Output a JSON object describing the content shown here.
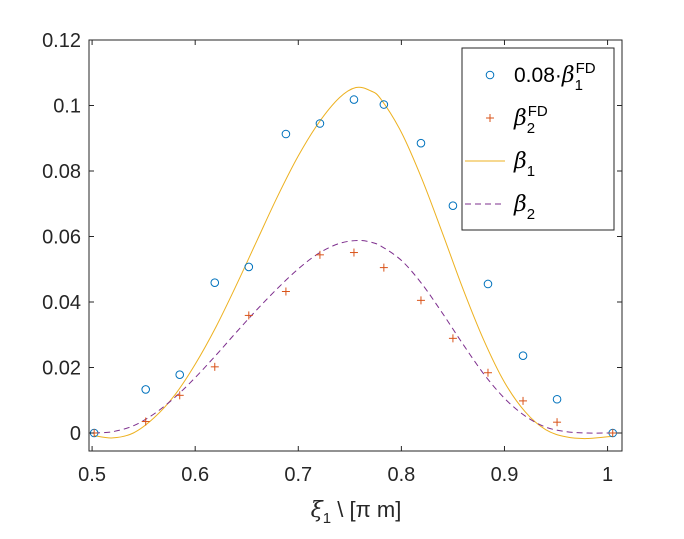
{
  "chart_data": {
    "type": "scatter",
    "title": "",
    "xlabel": {
      "sym": "ξ",
      "sub": "1",
      "rest": " \\ [π m]"
    },
    "ylabel": "",
    "xlim": [
      0.497,
      1.014
    ],
    "ylim": [
      -0.0055,
      0.12
    ],
    "xticks": [
      0.5,
      0.6,
      0.7,
      0.8,
      0.9,
      1.0
    ],
    "xtick_labels": [
      "0.5",
      "0.6",
      "0.7",
      "0.8",
      "0.9",
      "1"
    ],
    "yticks": [
      0,
      0.02,
      0.04,
      0.06,
      0.08,
      0.1,
      0.12
    ],
    "ytick_labels": [
      "0",
      "0.02",
      "0.04",
      "0.06",
      "0.08",
      "0.1",
      "0.12"
    ],
    "grid": false,
    "legend_position": "top-right",
    "series": [
      {
        "name": "0.08·β1FD",
        "legend": {
          "prefix": "0.08·",
          "sym": "β",
          "sub": "1",
          "sup": "FD"
        },
        "kind": "markers-circle",
        "color": "#0072BD",
        "x": [
          0.502,
          0.552,
          0.585,
          0.619,
          0.652,
          0.688,
          0.721,
          0.754,
          0.783,
          0.819,
          0.85,
          0.884,
          0.918,
          0.951,
          1.005
        ],
        "y": [
          0.0,
          0.0133,
          0.0178,
          0.0459,
          0.0507,
          0.0913,
          0.0945,
          0.1018,
          0.1003,
          0.0885,
          0.0694,
          0.0455,
          0.0236,
          0.0103,
          0.0
        ]
      },
      {
        "name": "β2FD",
        "legend": {
          "prefix": "",
          "sym": "β",
          "sub": "2",
          "sup": "FD"
        },
        "kind": "markers-plus",
        "color": "#D95319",
        "x": [
          0.502,
          0.552,
          0.585,
          0.619,
          0.652,
          0.688,
          0.721,
          0.754,
          0.783,
          0.819,
          0.85,
          0.884,
          0.918,
          0.951,
          1.005
        ],
        "y": [
          0.0,
          0.0035,
          0.0115,
          0.0202,
          0.0359,
          0.0432,
          0.0544,
          0.0551,
          0.0505,
          0.0405,
          0.0289,
          0.0184,
          0.0098,
          0.0033,
          0.0
        ]
      },
      {
        "name": "β1",
        "legend": {
          "prefix": "",
          "sym": "β",
          "sub": "1",
          "sup": ""
        },
        "kind": "line-solid",
        "color": "#EDB120",
        "x": [
          0.502,
          0.52,
          0.54,
          0.56,
          0.58,
          0.6,
          0.62,
          0.64,
          0.66,
          0.68,
          0.7,
          0.72,
          0.74,
          0.756,
          0.77,
          0.78,
          0.8,
          0.82,
          0.84,
          0.86,
          0.88,
          0.9,
          0.92,
          0.94,
          0.96,
          0.98,
          1.005
        ],
        "y": [
          -0.0008,
          -0.0015,
          0.0,
          0.0046,
          0.0115,
          0.021,
          0.0323,
          0.0452,
          0.0588,
          0.0723,
          0.0846,
          0.0948,
          0.1024,
          0.1055,
          0.1045,
          0.102,
          0.0918,
          0.0775,
          0.0609,
          0.0438,
          0.0283,
          0.0155,
          0.0065,
          0.001,
          -0.0012,
          -0.0017,
          -0.001
        ]
      },
      {
        "name": "β2",
        "legend": {
          "prefix": "",
          "sym": "β",
          "sub": "2",
          "sup": ""
        },
        "kind": "line-dashed",
        "color": "#7E2F8E",
        "x": [
          0.502,
          0.52,
          0.54,
          0.56,
          0.58,
          0.6,
          0.62,
          0.64,
          0.66,
          0.68,
          0.7,
          0.72,
          0.74,
          0.758,
          0.77,
          0.78,
          0.8,
          0.82,
          0.84,
          0.86,
          0.88,
          0.9,
          0.92,
          0.94,
          0.96,
          0.98,
          1.005
        ],
        "y": [
          0.0,
          0.0004,
          0.0022,
          0.0058,
          0.0108,
          0.0169,
          0.0237,
          0.0308,
          0.0377,
          0.0442,
          0.0501,
          0.0549,
          0.0579,
          0.0588,
          0.0583,
          0.0571,
          0.0527,
          0.0455,
          0.0365,
          0.027,
          0.018,
          0.0106,
          0.0052,
          0.0018,
          0.0004,
          0.0,
          0.0
        ]
      }
    ]
  }
}
